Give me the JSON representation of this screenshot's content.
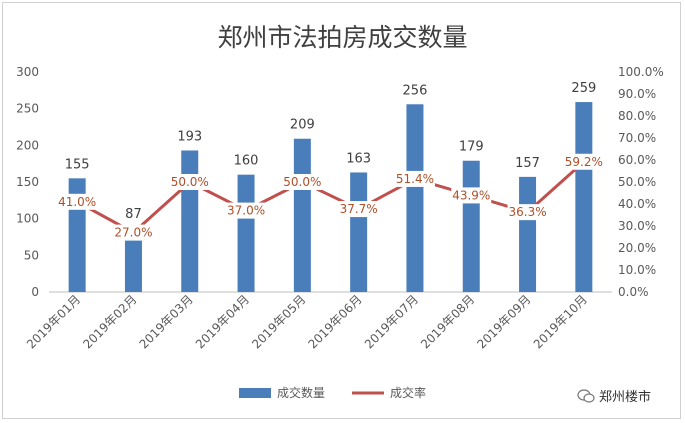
{
  "chart_data": {
    "type": "bar+line",
    "title": "郑州市法拍房成交数量",
    "categories": [
      "2019年01月",
      "2019年02月",
      "2019年03月",
      "2019年04月",
      "2019年05月",
      "2019年06月",
      "2019年07月",
      "2019年08月",
      "2019年09月",
      "2019年10月"
    ],
    "series": [
      {
        "name": "成交数量",
        "type": "bar",
        "axis": "left",
        "color": "#4a7ebb",
        "values": [
          155,
          87,
          193,
          160,
          209,
          163,
          256,
          179,
          157,
          259
        ],
        "labels": [
          "155",
          "87",
          "193",
          "160",
          "209",
          "163",
          "256",
          "179",
          "157",
          "259"
        ]
      },
      {
        "name": "成交率",
        "type": "line",
        "axis": "right",
        "color": "#c0504d",
        "values": [
          41.0,
          27.0,
          50.0,
          37.0,
          50.0,
          37.7,
          51.4,
          43.9,
          36.3,
          59.2
        ],
        "labels": [
          "41.0%",
          "27.0%",
          "50.0%",
          "37.0%",
          "50.0%",
          "37.7%",
          "51.4%",
          "43.9%",
          "36.3%",
          "59.2%"
        ]
      }
    ],
    "y_left": {
      "min": 0,
      "max": 300,
      "ticks": [
        "0",
        "50",
        "100",
        "150",
        "200",
        "250",
        "300"
      ]
    },
    "y_right": {
      "min": 0,
      "max": 100,
      "ticks": [
        "0.0%",
        "10.0%",
        "20.0%",
        "30.0%",
        "40.0%",
        "50.0%",
        "60.0%",
        "70.0%",
        "80.0%",
        "90.0%",
        "100.0%"
      ]
    },
    "legend": {
      "placement": "bottom",
      "items": [
        "成交数量",
        "成交率"
      ]
    },
    "grid": false
  },
  "source_label": "郑州楼市"
}
